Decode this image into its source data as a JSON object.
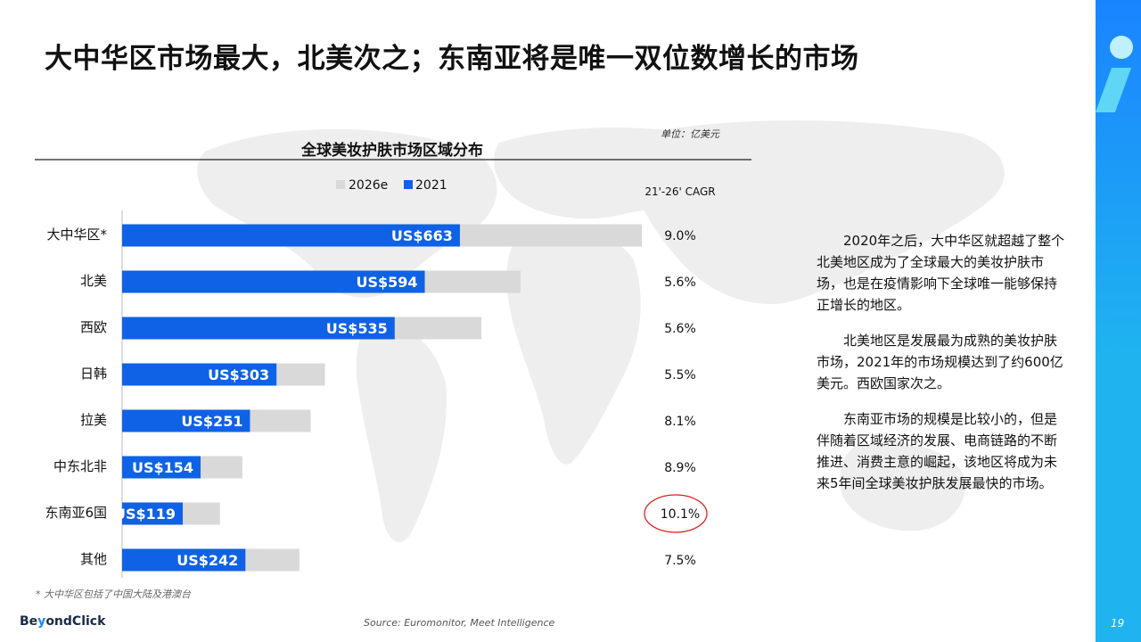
{
  "page": {
    "title": "大中华区市场最大，北美次之；东南亚将是唯一双位数增长的市场",
    "unit": "单位：亿美元",
    "footnote": "* 大中华区包括了中国大陆及港澳台",
    "source": "Source: Euromonitor, Meet Intelligence",
    "page_number": "19",
    "logo": {
      "part1": "Be",
      "part2": "y",
      "part3": "ondClick"
    }
  },
  "text": {
    "p1": "2020年之后，大中华区就超越了整个北美地区成为了全球最大的美妆护肤市场，也是在疫情影响下全球唯一能够保持正增长的地区。",
    "p2": "北美地区是发展最为成熟的美妆护肤市场，2021年的市场规模达到了约600亿美元。西欧国家次之。",
    "p3": "东南亚市场的规模是比较小的，但是伴随着区域经济的发展、电商链路的不断推进、消费主意的崛起，该地区将成为未来5年间全球美妆护肤发展最快的市场。"
  },
  "chart_data": {
    "type": "bar",
    "orientation": "horizontal",
    "title": "全球美妆护肤市场区域分布",
    "cagr_header": "21'-26' CAGR",
    "categories": [
      "大中华区*",
      "北美",
      "西欧",
      "日韩",
      "拉美",
      "中东北非",
      "东南亚6国",
      "其他"
    ],
    "series": [
      {
        "name": "2026e",
        "color": "#d9d9d9",
        "values": [
          1020,
          782,
          705,
          398,
          370,
          236,
          192,
          348
        ]
      },
      {
        "name": "2021",
        "color": "#0f62e6",
        "values": [
          663,
          594,
          535,
          303,
          251,
          154,
          119,
          242
        ],
        "labels": [
          "US$663",
          "US$594",
          "US$535",
          "US$303",
          "US$251",
          "US$154",
          "US$119",
          "US$242"
        ]
      }
    ],
    "cagr": [
      "9.0%",
      "5.6%",
      "5.6%",
      "5.5%",
      "8.1%",
      "8.9%",
      "10.1%",
      "7.5%"
    ],
    "highlight_index": 6,
    "highlight_color": "#e02020",
    "legend_position": "top"
  }
}
